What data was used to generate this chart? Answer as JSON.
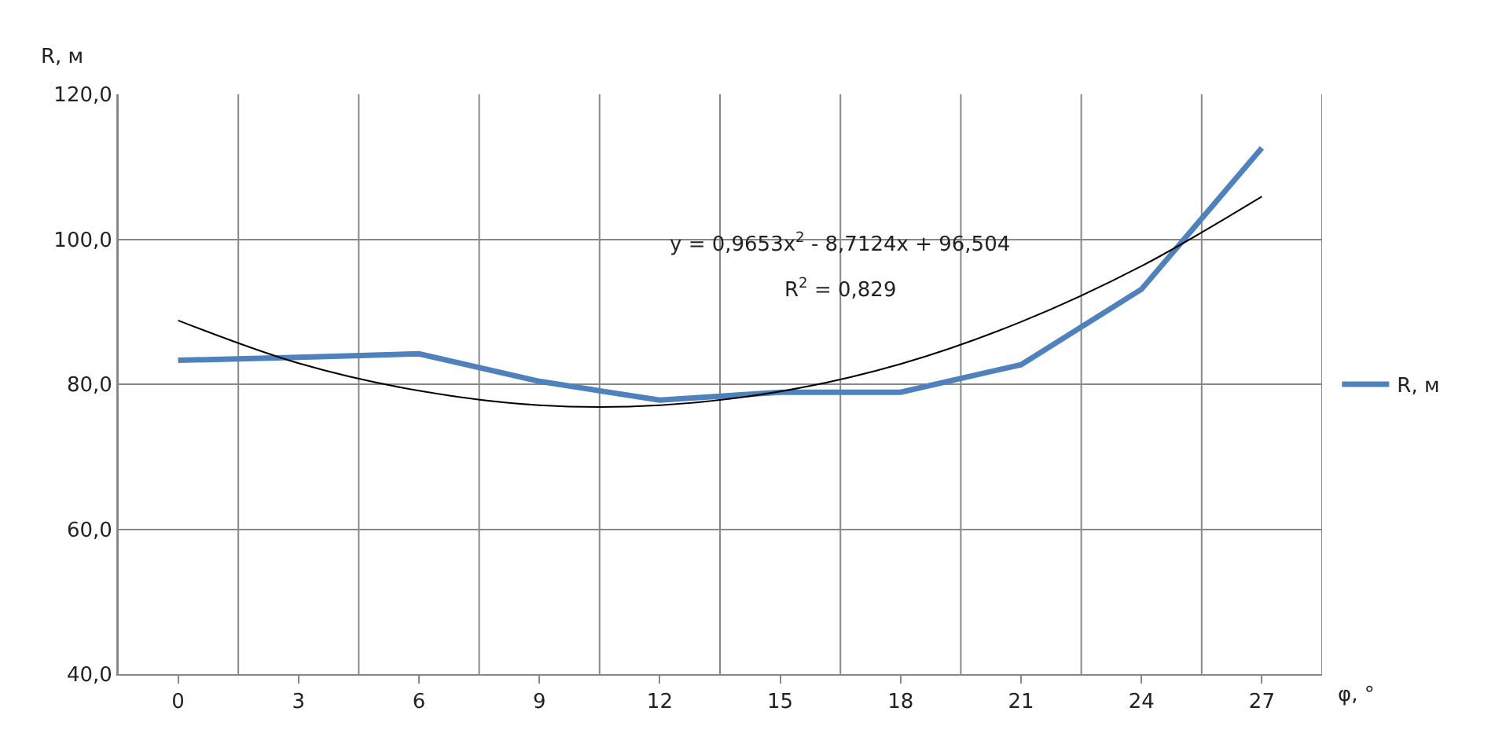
{
  "chart_data": {
    "type": "line",
    "xlabel": "φ, °",
    "ylabel": "R, м",
    "categories": [
      "0",
      "3",
      "6",
      "9",
      "12",
      "15",
      "18",
      "21",
      "24",
      "27"
    ],
    "series": [
      {
        "name": "R, м",
        "color": "#4f81bd",
        "values": [
          83.3,
          83.7,
          84.2,
          80.4,
          77.8,
          78.9,
          78.9,
          82.7,
          93.1,
          112.6
        ]
      },
      {
        "type": "line",
        "color": "#000000",
        "values": [
          88.8,
          82.9,
          79.1,
          77.1,
          77.1,
          79.0,
          82.8,
          88.6,
          96.3,
          105.9
        ]
      }
    ],
    "ylim": [
      40,
      120
    ],
    "yticks": [
      {
        "value": 40,
        "label": "40,0"
      },
      {
        "value": 60,
        "label": "60,0"
      },
      {
        "value": 80,
        "label": "80,0"
      },
      {
        "value": 100,
        "label": "100,0"
      },
      {
        "value": 120,
        "label": "120,0"
      }
    ],
    "annotations": [
      "y = 0,9653x$^{2}$ - 8,7124x + 96,504",
      "R$^{2}$ = 0,829"
    ],
    "grid": true,
    "legend": "right"
  }
}
